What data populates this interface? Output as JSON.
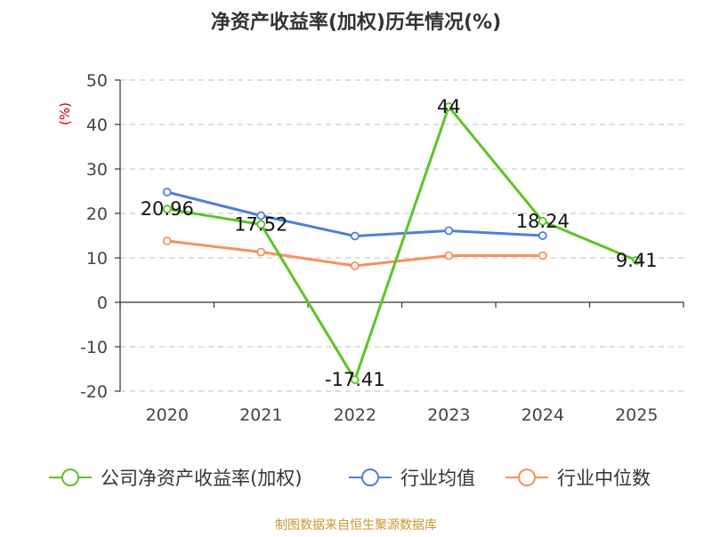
{
  "chart_data": {
    "type": "line",
    "title": "净资产收益率(加权)历年情况(%)",
    "ylabel": "(%)",
    "xlabel": "",
    "categories": [
      "2020",
      "2021",
      "2022",
      "2023",
      "2024",
      "2025"
    ],
    "ylim": [
      -20,
      50
    ],
    "yticks": [
      50,
      40,
      30,
      20,
      10,
      0,
      -10,
      -20
    ],
    "grid": true,
    "legend_position": "bottom",
    "series": [
      {
        "name": "公司净资产收益率(加权)",
        "color": "#5cc425",
        "values": [
          20.96,
          17.52,
          -17.41,
          44,
          18.24,
          9.41
        ],
        "labels": [
          "20.96",
          "17.52",
          "-17.41",
          "44",
          "18.24",
          "9.41"
        ]
      },
      {
        "name": "行业均值",
        "color": "#4e7fd9",
        "values": [
          24.8,
          19.5,
          14.9,
          16.1,
          15.0,
          null
        ],
        "labels": []
      },
      {
        "name": "行业中位数",
        "color": "#f7905c",
        "values": [
          13.8,
          11.3,
          8.2,
          10.5,
          10.5,
          null
        ],
        "labels": []
      }
    ],
    "source": "制图数据来自恒生聚源数据库"
  }
}
